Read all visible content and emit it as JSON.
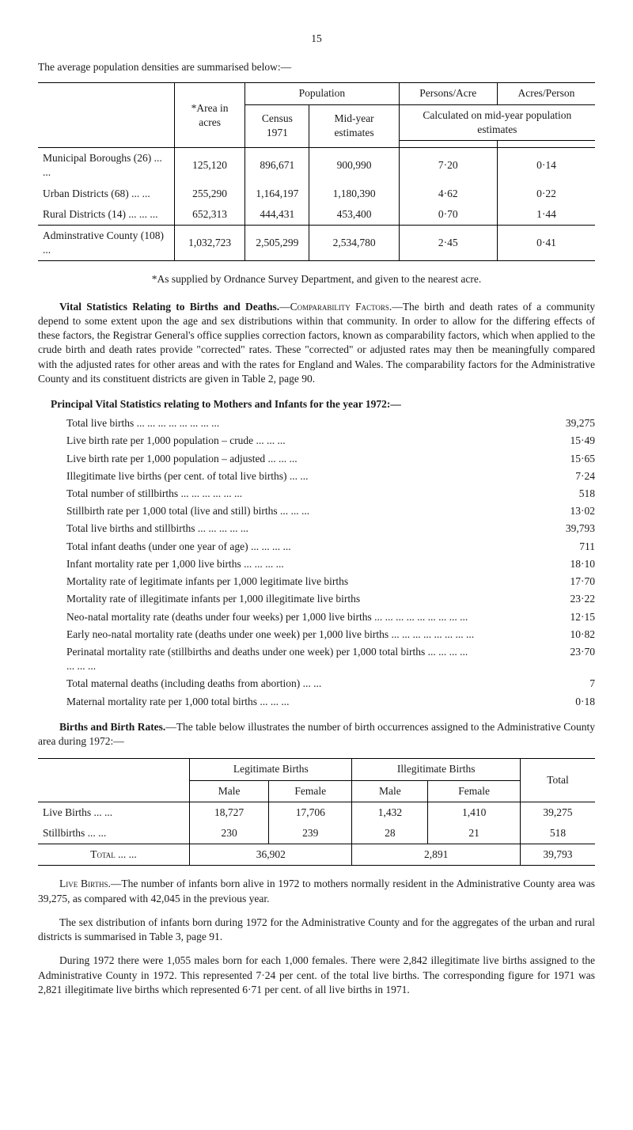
{
  "page_number": "15",
  "intro_line": "The average population densities are summarised below:—",
  "density_table": {
    "headers": {
      "area": "*Area in acres",
      "population": "Population",
      "census": "Census 1971",
      "midyear": "Mid-year estimates",
      "persons_acre": "Persons/Acre",
      "acres_person": "Acres/Person",
      "calc_note": "Calculated on mid-year population estimates"
    },
    "rows": [
      {
        "label": "Municipal Boroughs (26)   ...    ...",
        "area": "125,120",
        "census": "896,671",
        "midyear": "900,990",
        "pa": "7·20",
        "ap": "0·14"
      },
      {
        "label": "Urban Districts (68)            ...    ...",
        "area": "255,290",
        "census": "1,164,197",
        "midyear": "1,180,390",
        "pa": "4·62",
        "ap": "0·22"
      },
      {
        "label": "Rural Districts (14) ...    ...    ...",
        "area": "652,313",
        "census": "444,431",
        "midyear": "453,400",
        "pa": "0·70",
        "ap": "1·44"
      },
      {
        "label": "Adminstrative County (108)       ...",
        "area": "1,032,723",
        "census": "2,505,299",
        "midyear": "2,534,780",
        "pa": "2·45",
        "ap": "0·41"
      }
    ]
  },
  "footnote": "*As supplied by Ordnance Survey Department, and given to the nearest acre.",
  "para1_a": "Vital Statistics Relating to Births and Deaths.",
  "para1_b": "—Comparability Factors.",
  "para1_c": "—The birth and death rates of a community depend to some extent upon the age and sex distributions within that com­munity. In order to allow for the differing effects of these factors, the Registrar General's office supplies correction factors, known as comparability factors, which when applied to the crude birth and death rates provide \"corrected\" rates. These \"corrected\" or adjusted rates may then be meaning­fully compared with the adjusted rates for other areas and with the rates for England and Wales. The comparability factors for the Administrative County and its constituent districts are given in Table 2, page 90.",
  "stats_heading": "Principal Vital Statistics relating to Mothers and Infants for the year 1972:—",
  "stats": [
    {
      "label": "Total live births ...    ...    ...    ...    ...    ...    ...    ...",
      "val": "39,275"
    },
    {
      "label": "Live birth rate per 1,000 population – crude            ...    ...    ...",
      "val": "15·49"
    },
    {
      "label": "Live birth rate per 1,000 population – adjusted        ...    ...    ...",
      "val": "15·65"
    },
    {
      "label": "Illegitimate live births (per cent. of total live births)        ...    ...",
      "val": "7·24"
    },
    {
      "label": "Total number of stillbirths     ...    ...    ...    ...    ...    ...",
      "val": "518"
    },
    {
      "label": "Stillbirth rate per 1,000 total (live and still) births  ...    ...    ...",
      "val": "13·02"
    },
    {
      "label": "Total live births and stillbirths           ...    ...    ...    ...    ...",
      "val": "39,793"
    },
    {
      "label": "Total infant deaths (under one year of age) ...    ...    ...    ...",
      "val": "711"
    },
    {
      "label": "Infant mortality rate per 1,000 live births     ...    ...    ...    ...",
      "val": "18·10"
    },
    {
      "label": "Mortality rate of legitimate infants per 1,000 legitimate live births",
      "val": "17·70"
    },
    {
      "label": "Mortality rate of illegitimate infants per 1,000 illegitimate live births",
      "val": "23·22"
    },
    {
      "label": "Neo-natal mortality rate (deaths under four weeks) per 1,000 live births ...    ...    ...    ...    ...    ...    ...    ...    ...",
      "val": "12·15"
    },
    {
      "label": "Early neo-natal mortality rate (deaths under one week) per 1,000 live births       ...    ...    ...    ...    ...    ...    ...    ...",
      "val": "10·82"
    },
    {
      "label": "Perinatal mortality rate (stillbirths and deaths under one week) per 1,000 total births       ...    ...    ...    ...    ...    ...    ...",
      "val": "23·70"
    },
    {
      "label": "Total maternal deaths (including deaths from abortion)    ...    ...",
      "val": "7"
    },
    {
      "label": "Maternal mortality rate per 1,000 total births          ...    ...    ...",
      "val": "0·18"
    }
  ],
  "para2_a": "Births and Birth Rates.",
  "para2_b": "—The table below illustrates the number of birth occurrences assigned to the Administrative County area during 1972:—",
  "births_table": {
    "headers": {
      "legit": "Legitimate Births",
      "illegit": "Illegitimate Births",
      "male": "Male",
      "female": "Female",
      "total": "Total"
    },
    "rows": [
      {
        "label": "Live Births      ...    ...",
        "lm": "18,727",
        "lf": "17,706",
        "im": "1,432",
        "if": "1,410",
        "tot": "39,275"
      },
      {
        "label": "Stillbirths        ...    ...",
        "lm": "230",
        "lf": "239",
        "im": "28",
        "if": "21",
        "tot": "518"
      }
    ],
    "total_row": {
      "label": "Total    ...    ...",
      "legit": "36,902",
      "illegit": "2,891",
      "tot": "39,793"
    }
  },
  "para3_a": "Live Births.",
  "para3_b": "—The number of infants born alive in 1972 to mothers normally resident in the Administrative County area was 39,275, as compared with 42,045 in the previous year.",
  "para4": "The sex distribution of infants born during 1972 for the Administrative County and for the aggregates of the urban and rural districts is summarised in Table 3, page 91.",
  "para5": "During 1972 there were 1,055 males born for each 1,000 females. There were 2,842 illegitimate live births assigned to the Administrative County in 1972. This represented 7·24 per cent. of the total live births. The corresponding figure for 1971 was 2,821 illegitimate live births which represented 6·71 per cent. of all live births in 1971."
}
